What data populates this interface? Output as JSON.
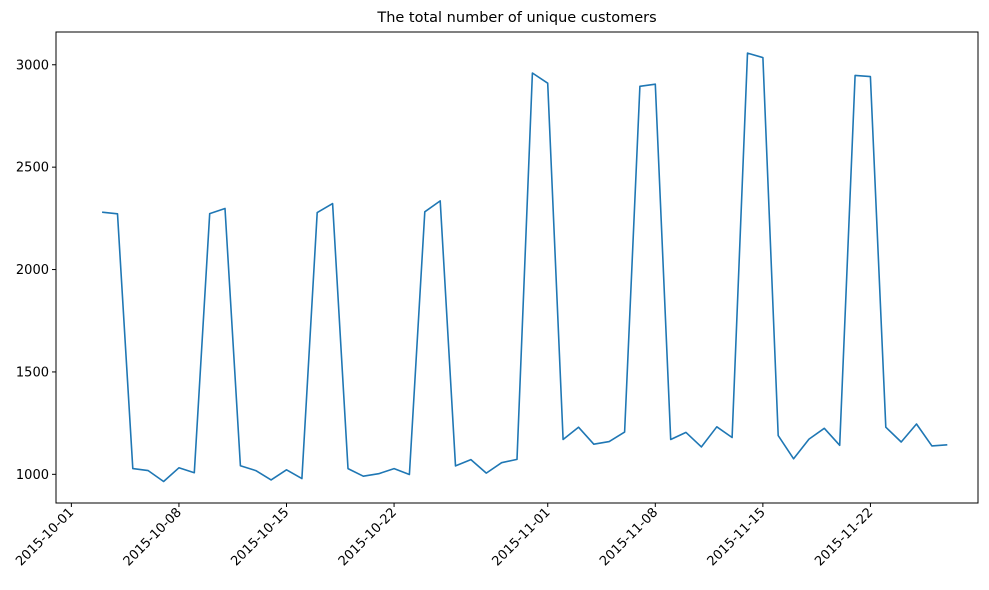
{
  "chart_data": {
    "type": "line",
    "title": "The total number of unique customers",
    "xlabel": "",
    "ylabel": "",
    "x_range": [
      "2015-09-30",
      "2015-11-29"
    ],
    "ylim": [
      860,
      3160
    ],
    "grid": false,
    "line_color": "#1f77b4",
    "x_ticks": [
      "2015-10-01",
      "2015-10-08",
      "2015-10-15",
      "2015-10-22",
      "2015-11-01",
      "2015-11-08",
      "2015-11-15",
      "2015-11-22"
    ],
    "y_ticks": [
      1000,
      1500,
      2000,
      2500,
      3000
    ],
    "series": [
      {
        "x": [
          "2015-10-03",
          "2015-10-04",
          "2015-10-05",
          "2015-10-06",
          "2015-10-07",
          "2015-10-08",
          "2015-10-09",
          "2015-10-10",
          "2015-10-11",
          "2015-10-12",
          "2015-10-13",
          "2015-10-14",
          "2015-10-15",
          "2015-10-16",
          "2015-10-17",
          "2015-10-18",
          "2015-10-19",
          "2015-10-20",
          "2015-10-21",
          "2015-10-22",
          "2015-10-23",
          "2015-10-24",
          "2015-10-25",
          "2015-10-26",
          "2015-10-27",
          "2015-10-28",
          "2015-10-29",
          "2015-10-30",
          "2015-10-31",
          "2015-11-01",
          "2015-11-02",
          "2015-11-03",
          "2015-11-04",
          "2015-11-05",
          "2015-11-06",
          "2015-11-07",
          "2015-11-08",
          "2015-11-09",
          "2015-11-10",
          "2015-11-11",
          "2015-11-12",
          "2015-11-13",
          "2015-11-14",
          "2015-11-15",
          "2015-11-16",
          "2015-11-17",
          "2015-11-18",
          "2015-11-19",
          "2015-11-20",
          "2015-11-21",
          "2015-11-22",
          "2015-11-23",
          "2015-11-24",
          "2015-11-25",
          "2015-11-26",
          "2015-11-27"
        ],
        "values": [
          2280,
          2272,
          1028,
          1018,
          965,
          1032,
          1008,
          2273,
          2298,
          1042,
          1018,
          973,
          1022,
          979,
          2278,
          2322,
          1028,
          991,
          1003,
          1028,
          999,
          2282,
          2335,
          1041,
          1072,
          1006,
          1057,
          1073,
          2960,
          2910,
          1170,
          1230,
          1147,
          1160,
          1206,
          2895,
          2905,
          1170,
          1205,
          1134,
          1232,
          1180,
          3057,
          3035,
          1189,
          1076,
          1172,
          1225,
          1142,
          2948,
          2942,
          1230,
          1158,
          1246,
          1139,
          1144
        ]
      }
    ]
  }
}
